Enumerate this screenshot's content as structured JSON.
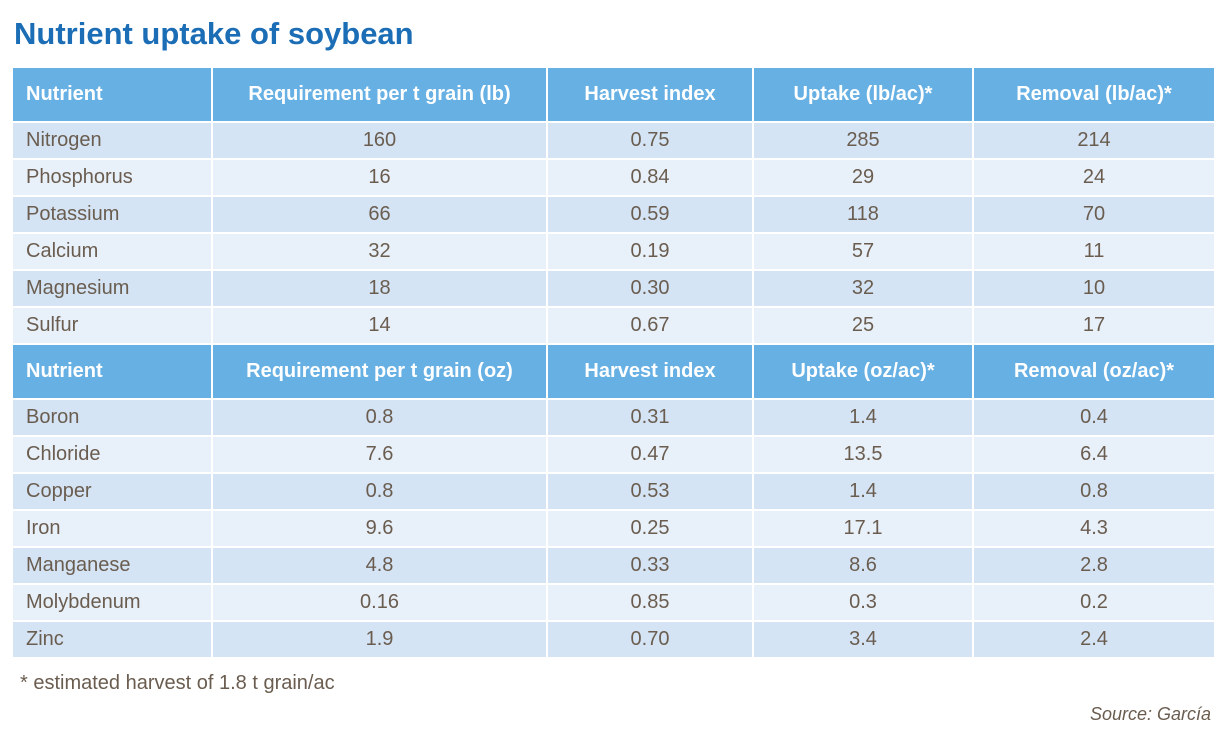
{
  "title": "Nutrient uptake of soybean",
  "tables": [
    {
      "header": [
        "Nutrient",
        "Requirement per t grain (lb)",
        "Harvest index",
        "Uptake (lb/ac)*",
        "Removal (lb/ac)*"
      ],
      "rows": [
        [
          "Nitrogen",
          "160",
          "0.75",
          "285",
          "214"
        ],
        [
          "Phosphorus",
          "16",
          "0.84",
          "29",
          "24"
        ],
        [
          "Potassium",
          "66",
          "0.59",
          "118",
          "70"
        ],
        [
          "Calcium",
          "32",
          "0.19",
          "57",
          "11"
        ],
        [
          "Magnesium",
          "18",
          "0.30",
          "32",
          "10"
        ],
        [
          "Sulfur",
          "14",
          "0.67",
          "25",
          "17"
        ]
      ]
    },
    {
      "header": [
        "Nutrient",
        "Requirement per t grain (oz)",
        "Harvest index",
        "Uptake (oz/ac)*",
        "Removal (oz/ac)*"
      ],
      "rows": [
        [
          "Boron",
          "0.8",
          "0.31",
          "1.4",
          "0.4"
        ],
        [
          "Chloride",
          "7.6",
          "0.47",
          "13.5",
          "6.4"
        ],
        [
          "Copper",
          "0.8",
          "0.53",
          "1.4",
          "0.8"
        ],
        [
          "Iron",
          "9.6",
          "0.25",
          "17.1",
          "4.3"
        ],
        [
          "Manganese",
          "4.8",
          "0.33",
          "8.6",
          "2.8"
        ],
        [
          "Molybdenum",
          "0.16",
          "0.85",
          "0.3",
          "0.2"
        ],
        [
          "Zinc",
          "1.9",
          "0.70",
          "3.4",
          "2.4"
        ]
      ]
    }
  ],
  "footnote": "* estimated harvest of 1.8 t grain/ac",
  "source": "Source: García"
}
